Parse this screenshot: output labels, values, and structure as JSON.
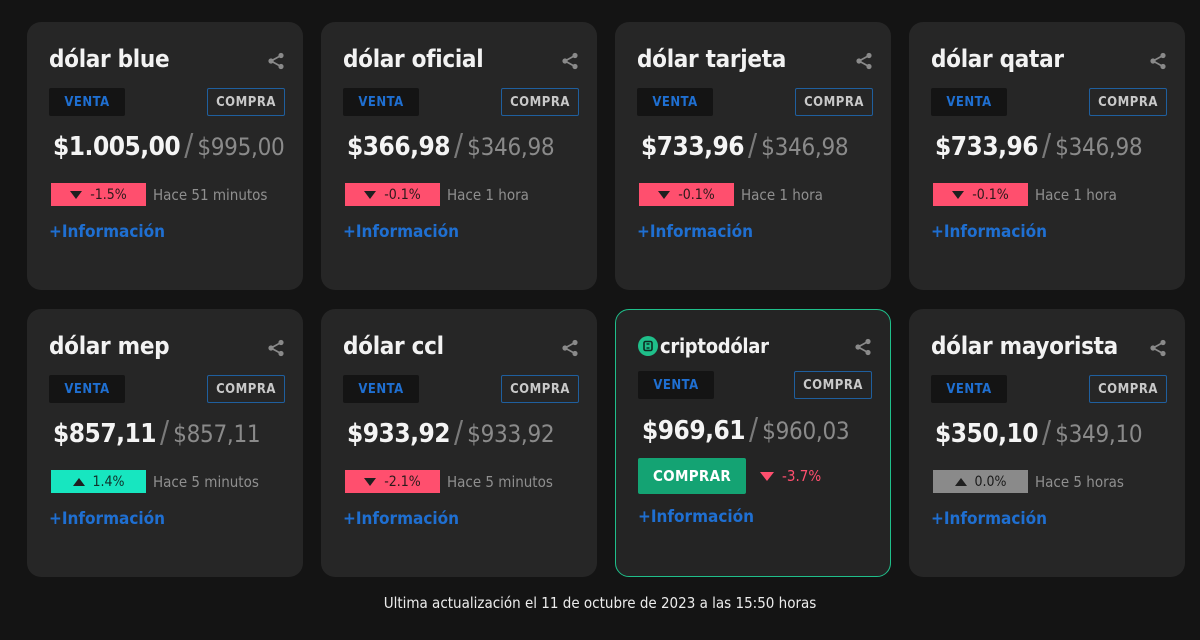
{
  "cards": [
    {
      "title": "dólar blue",
      "venta_label": "VENTA",
      "compra_label": "COMPRA",
      "venta": "$1.005,00",
      "sep": "/",
      "compra": "$995,00",
      "change": "-1.5%",
      "direction": "down",
      "updated": "Hace 51 minutos",
      "info": "+Información"
    },
    {
      "title": "dólar oficial",
      "venta_label": "VENTA",
      "compra_label": "COMPRA",
      "venta": "$366,98",
      "sep": "/",
      "compra": "$346,98",
      "change": "-0.1%",
      "direction": "down",
      "updated": "Hace 1 hora",
      "info": "+Información"
    },
    {
      "title": "dólar tarjeta",
      "venta_label": "VENTA",
      "compra_label": "COMPRA",
      "venta": "$733,96",
      "sep": "/",
      "compra": "$346,98",
      "change": "-0.1%",
      "direction": "down",
      "updated": "Hace 1 hora",
      "info": "+Información"
    },
    {
      "title": "dólar qatar",
      "venta_label": "VENTA",
      "compra_label": "COMPRA",
      "venta": "$733,96",
      "sep": "/",
      "compra": "$346,98",
      "change": "-0.1%",
      "direction": "down",
      "updated": "Hace 1 hora",
      "info": "+Información"
    },
    {
      "title": "dólar mep",
      "venta_label": "VENTA",
      "compra_label": "COMPRA",
      "venta": "$857,11",
      "sep": "/",
      "compra": "$857,11",
      "change": "1.4%",
      "direction": "up",
      "updated": "Hace 5 minutos",
      "info": "+Información"
    },
    {
      "title": "dólar ccl",
      "venta_label": "VENTA",
      "compra_label": "COMPRA",
      "venta": "$933,92",
      "sep": "/",
      "compra": "$933,92",
      "change": "-2.1%",
      "direction": "down",
      "updated": "Hace 5 minutos",
      "info": "+Información"
    },
    {
      "title": "criptodólar",
      "venta_label": "VENTA",
      "compra_label": "COMPRA",
      "venta": "$969,61",
      "sep": "/",
      "compra": "$960,03",
      "buy_button": "COMPRAR",
      "change": "-3.7%",
      "direction": "down",
      "info": "+Información"
    },
    {
      "title": "dólar mayorista",
      "venta_label": "VENTA",
      "compra_label": "COMPRA",
      "venta": "$350,10",
      "sep": "/",
      "compra": "$349,10",
      "change": "0.0%",
      "direction": "flat",
      "updated": "Hace 5 horas",
      "info": "+Información"
    }
  ],
  "footer": "Ultima actualización el 11 de octubre de 2023 a las 15:50 horas",
  "colors": {
    "background": "#141414",
    "card": "#262626",
    "down": "#ff4f6e",
    "up": "#17e6c0",
    "flat": "#8a8a8a",
    "accent_blue": "#1f6fd1",
    "crypto_green": "#1fbf8a"
  }
}
